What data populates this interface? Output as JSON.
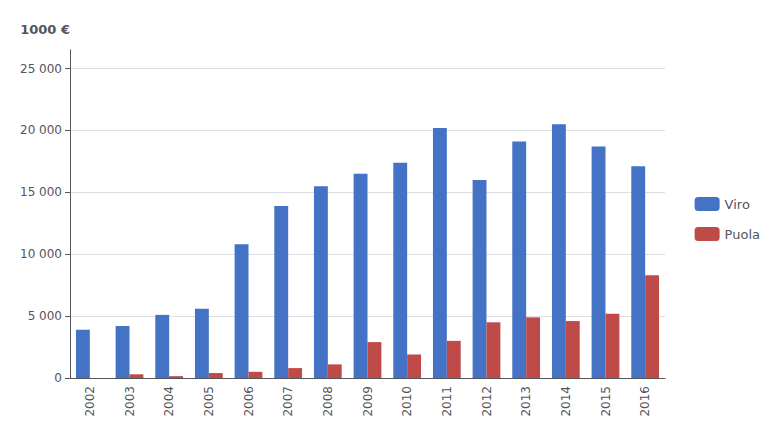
{
  "chart_data": {
    "type": "bar",
    "categories": [
      "2002",
      "2003",
      "2004",
      "2005",
      "2006",
      "2007",
      "2008",
      "2009",
      "2010",
      "2011",
      "2012",
      "2013",
      "2014",
      "2015",
      "2016"
    ],
    "series": [
      {
        "name": "Viro",
        "color": "#4472C4",
        "values": [
          3900,
          4200,
          5100,
          5600,
          10800,
          13900,
          15500,
          16500,
          17400,
          20200,
          16000,
          19100,
          20500,
          18700,
          17100
        ]
      },
      {
        "name": "Puola",
        "color": "#BE4B48",
        "values": [
          0,
          300,
          150,
          400,
          500,
          800,
          1100,
          2900,
          1900,
          3000,
          4500,
          4900,
          4600,
          5200,
          8300
        ]
      }
    ],
    "ylabel": "1000 €",
    "ylim": [
      0,
      26500
    ],
    "yticks": [
      0,
      {
        "value": 5000,
        "label": "5 000"
      },
      {
        "value": 10000,
        "label": "10 000"
      },
      {
        "value": 15000,
        "label": "15 000"
      },
      {
        "value": 20000,
        "label": "20 000"
      },
      {
        "value": 25000,
        "label": "25 000"
      }
    ],
    "grid": true,
    "legend": "right"
  }
}
